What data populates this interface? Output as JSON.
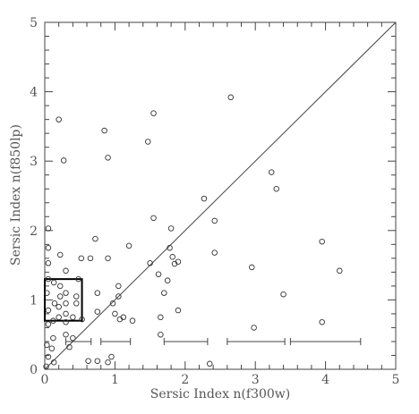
{
  "chart_data": {
    "type": "scatter",
    "title": "",
    "xlabel": "Sersic Index n(f300w)",
    "ylabel": "Sersic Index n(f850lp)",
    "xlim": [
      0,
      5
    ],
    "ylim": [
      0,
      5
    ],
    "x_ticks": [
      {
        "value": 0,
        "label": "0"
      },
      {
        "value": 1,
        "label": "1"
      },
      {
        "value": 2,
        "label": "2"
      },
      {
        "value": 3,
        "label": "3"
      },
      {
        "value": 4,
        "label": "4"
      },
      {
        "value": 5,
        "label": "5"
      }
    ],
    "y_ticks": [
      {
        "value": 0,
        "label": "0"
      },
      {
        "value": 1,
        "label": "1"
      },
      {
        "value": 2,
        "label": "2"
      },
      {
        "value": 3,
        "label": "3"
      },
      {
        "value": 4,
        "label": "4"
      },
      {
        "value": 5,
        "label": "5"
      }
    ],
    "minor_tick_step": 0.2,
    "marker": "open-circle",
    "grid": false,
    "reference_line": {
      "type": "y=x",
      "from": [
        0,
        0
      ],
      "to": [
        5,
        5
      ]
    },
    "highlight_box": {
      "x": [
        0,
        0.53
      ],
      "y": [
        0.7,
        1.3
      ]
    },
    "error_bars": [
      {
        "y": 0.4,
        "x_range": [
          0.3,
          0.66
        ]
      },
      {
        "y": 0.4,
        "x_range": [
          0.8,
          1.22
        ]
      },
      {
        "y": 0.4,
        "x_range": [
          1.7,
          2.32
        ]
      },
      {
        "y": 0.4,
        "x_range": [
          2.6,
          3.42
        ]
      },
      {
        "y": 0.4,
        "x_range": [
          3.5,
          4.5
        ]
      }
    ],
    "points": [
      {
        "x": 0.02,
        "y": 0.04
      },
      {
        "x": 0.05,
        "y": 0.18
      },
      {
        "x": 0.03,
        "y": 0.35
      },
      {
        "x": 0.05,
        "y": 0.65
      },
      {
        "x": 0.05,
        "y": 0.85
      },
      {
        "x": 0.03,
        "y": 1.1
      },
      {
        "x": 0.05,
        "y": 1.3
      },
      {
        "x": 0.05,
        "y": 1.53
      },
      {
        "x": 0.05,
        "y": 1.75
      },
      {
        "x": 0.05,
        "y": 2.03
      },
      {
        "x": 0.13,
        "y": 0.1
      },
      {
        "x": 0.1,
        "y": 0.3
      },
      {
        "x": 0.12,
        "y": 0.45
      },
      {
        "x": 0.12,
        "y": 0.7
      },
      {
        "x": 0.14,
        "y": 0.95
      },
      {
        "x": 0.13,
        "y": 1.25
      },
      {
        "x": 0.2,
        "y": 0.75
      },
      {
        "x": 0.2,
        "y": 0.9
      },
      {
        "x": 0.22,
        "y": 1.05
      },
      {
        "x": 0.22,
        "y": 1.2
      },
      {
        "x": 0.22,
        "y": 1.65
      },
      {
        "x": 0.3,
        "y": 0.5
      },
      {
        "x": 0.3,
        "y": 0.68
      },
      {
        "x": 0.3,
        "y": 0.8
      },
      {
        "x": 0.3,
        "y": 0.95
      },
      {
        "x": 0.3,
        "y": 1.1
      },
      {
        "x": 0.3,
        "y": 1.42
      },
      {
        "x": 0.35,
        "y": 0.32
      },
      {
        "x": 0.4,
        "y": 0.45
      },
      {
        "x": 0.4,
        "y": 0.75
      },
      {
        "x": 0.45,
        "y": 0.95
      },
      {
        "x": 0.45,
        "y": 1.05
      },
      {
        "x": 0.48,
        "y": 1.3
      },
      {
        "x": 0.53,
        "y": 0.72
      },
      {
        "x": 0.52,
        "y": 1.6
      },
      {
        "x": 0.2,
        "y": 3.6
      },
      {
        "x": 0.27,
        "y": 3.01
      },
      {
        "x": 0.62,
        "y": 0.12
      },
      {
        "x": 0.65,
        "y": 1.6
      },
      {
        "x": 0.72,
        "y": 1.88
      },
      {
        "x": 0.75,
        "y": 1.1
      },
      {
        "x": 0.75,
        "y": 0.83
      },
      {
        "x": 0.75,
        "y": 0.12
      },
      {
        "x": 0.85,
        "y": 3.44
      },
      {
        "x": 0.9,
        "y": 3.05
      },
      {
        "x": 0.9,
        "y": 0.1
      },
      {
        "x": 0.95,
        "y": 0.18
      },
      {
        "x": 0.9,
        "y": 1.6
      },
      {
        "x": 0.97,
        "y": 0.95
      },
      {
        "x": 1.0,
        "y": 0.8
      },
      {
        "x": 1.05,
        "y": 1.2
      },
      {
        "x": 1.05,
        "y": 1.05
      },
      {
        "x": 1.07,
        "y": 0.72
      },
      {
        "x": 1.12,
        "y": 0.75
      },
      {
        "x": 1.2,
        "y": 1.78
      },
      {
        "x": 1.25,
        "y": 0.7
      },
      {
        "x": 1.47,
        "y": 3.28
      },
      {
        "x": 1.5,
        "y": 1.53
      },
      {
        "x": 1.55,
        "y": 2.18
      },
      {
        "x": 1.55,
        "y": 3.69
      },
      {
        "x": 1.62,
        "y": 1.37
      },
      {
        "x": 1.65,
        "y": 0.75
      },
      {
        "x": 1.65,
        "y": 0.5
      },
      {
        "x": 1.7,
        "y": 1.1
      },
      {
        "x": 1.75,
        "y": 1.28
      },
      {
        "x": 1.78,
        "y": 1.75
      },
      {
        "x": 1.8,
        "y": 2.03
      },
      {
        "x": 1.82,
        "y": 1.62
      },
      {
        "x": 1.85,
        "y": 1.52
      },
      {
        "x": 1.9,
        "y": 1.55
      },
      {
        "x": 1.9,
        "y": 0.85
      },
      {
        "x": 2.27,
        "y": 2.46
      },
      {
        "x": 2.35,
        "y": 0.08
      },
      {
        "x": 2.42,
        "y": 2.14
      },
      {
        "x": 2.42,
        "y": 1.68
      },
      {
        "x": 2.65,
        "y": 3.92
      },
      {
        "x": 2.95,
        "y": 1.47
      },
      {
        "x": 2.98,
        "y": 0.6
      },
      {
        "x": 3.23,
        "y": 2.84
      },
      {
        "x": 3.3,
        "y": 2.6
      },
      {
        "x": 3.4,
        "y": 1.08
      },
      {
        "x": 3.95,
        "y": 1.84
      },
      {
        "x": 3.95,
        "y": 0.68
      },
      {
        "x": 4.2,
        "y": 1.42
      }
    ]
  }
}
